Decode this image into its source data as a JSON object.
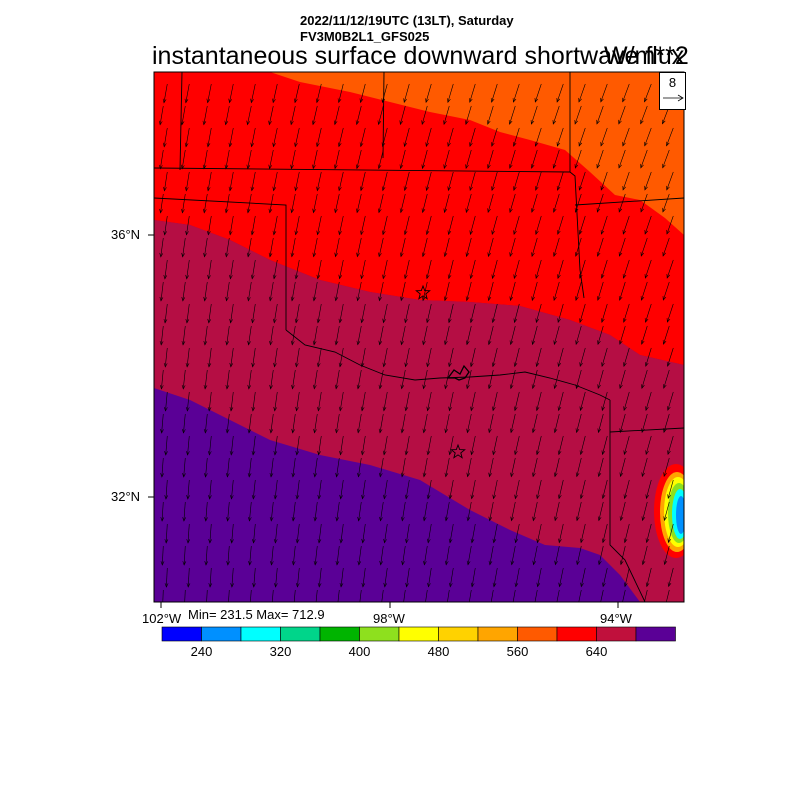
{
  "header": {
    "line1": "2022/11/12/19UTC (13LT), Saturday",
    "line2": "FV3M0B2L1_GFS025",
    "title": "instantaneous surface downward shortwave flux",
    "units": "W/m**2"
  },
  "vector_reference": {
    "value": "8"
  },
  "axes": {
    "lat_labels": [
      "36°N",
      "32°N"
    ],
    "lon_labels": [
      "102°W",
      "98°W",
      "94°W"
    ]
  },
  "stats": {
    "text": "Min= 231.5 Max= 712.9"
  },
  "colorbar": {
    "colors": [
      "#0000ff",
      "#0090ff",
      "#00ffff",
      "#00d58a",
      "#00b400",
      "#8ee01e",
      "#ffff00",
      "#ffd200",
      "#ffa500",
      "#ff5a00",
      "#ff0000",
      "#c0103c",
      "#5a0096"
    ],
    "labels": [
      "240",
      "320",
      "400",
      "480",
      "560",
      "640"
    ]
  },
  "field_colors": {
    "orange": "#ff5a00",
    "red": "#ff0000",
    "crimson": "#b50e44",
    "purple": "#5a0096"
  }
}
